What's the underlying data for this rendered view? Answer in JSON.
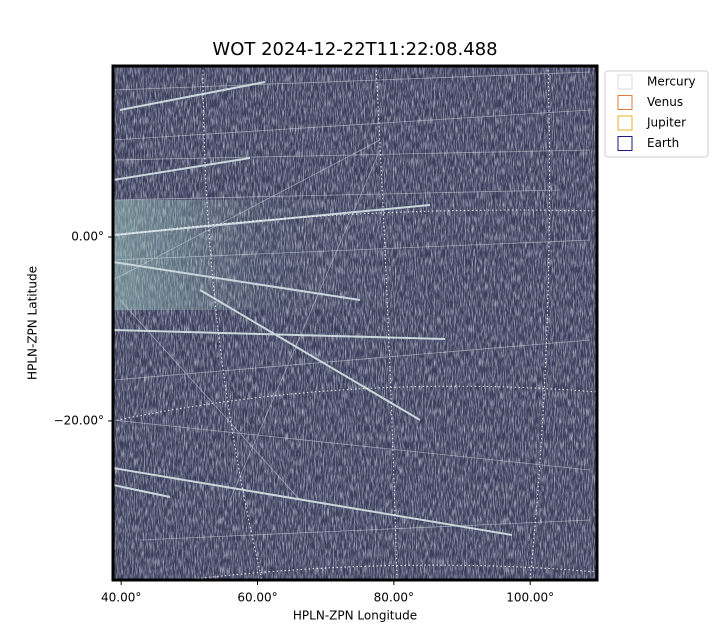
{
  "chart_data": {
    "type": "image",
    "title": "WOT 2024-12-22T11:22:08.488",
    "x_label": "HPLN-ZPN Longitude",
    "y_label": "HPLN-ZPN Latitude",
    "xlim": [
      38.8,
      109.8
    ],
    "ylim": [
      -37.3,
      18.6
    ],
    "xticks": [
      {
        "value": 40,
        "label": "40.00°"
      },
      {
        "value": 60,
        "label": "60.00°"
      },
      {
        "value": 80,
        "label": "80.00°"
      },
      {
        "value": 100,
        "label": "100.00°"
      }
    ],
    "yticks": [
      {
        "value": 0,
        "label": "0.00°"
      },
      {
        "value": -20,
        "label": "−20.00°"
      }
    ],
    "series": [
      {
        "name": "Mercury",
        "color": "#d9d9d9"
      },
      {
        "name": "Venus",
        "color": "#e07b39"
      },
      {
        "name": "Jupiter",
        "color": "#e8b020"
      },
      {
        "name": "Earth",
        "color": "#1a1a7a"
      }
    ],
    "legend": "upper right outside"
  }
}
